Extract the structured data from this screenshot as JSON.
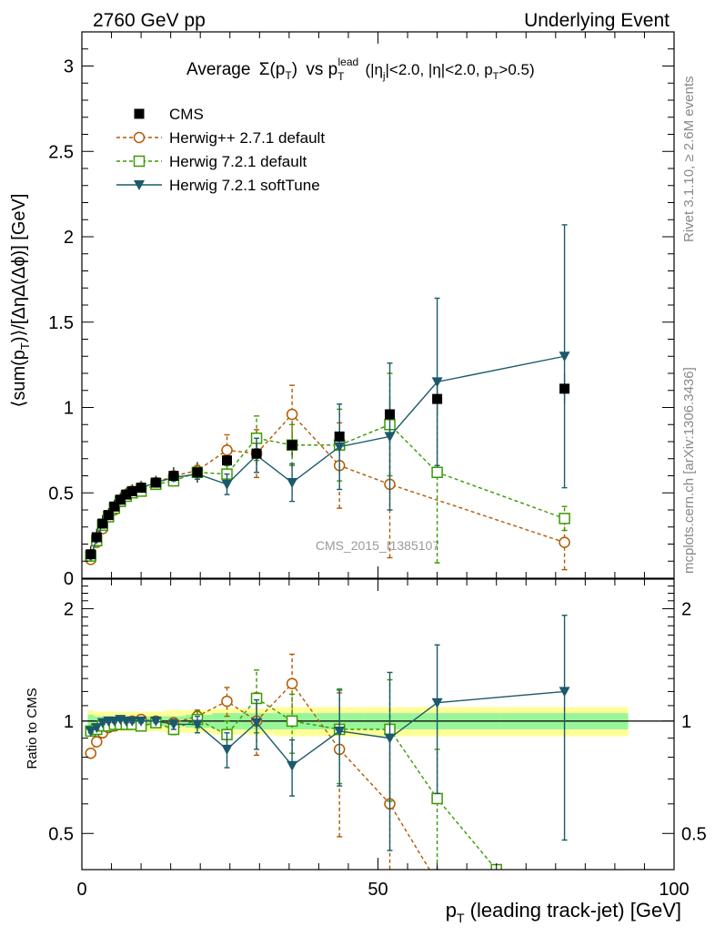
{
  "header": {
    "left": "2760 GeV pp",
    "right": "Underlying Event"
  },
  "title": {
    "main": "Average",
    "sigma": "Σ(p",
    "sigma_sub": "T",
    "sigma_close": ")",
    "vs": "vs p",
    "vs_sub": "T",
    "vs_sup": "lead",
    "cuts_a": "(|η",
    "cuts_a_sub": "j",
    "cuts_b": "|<2.0, |η|<2.0, p",
    "cuts_b_sub": "T",
    "cuts_c": ">0.5)"
  },
  "side_labels": {
    "rivet": "Rivet 3.1.10, ≥ 2.6M events",
    "mcplots": "mcplots.cern.ch [arXiv:1306.3436]"
  },
  "watermark": "CMS_2015_I1385107",
  "axes": {
    "top_ylabel_a": "⟨sum(p",
    "top_ylabel_sub": "T",
    "top_ylabel_b": ")⟩/[ΔηΔ(Δϕ)] [GeV]",
    "bottom_ylabel": "Ratio to CMS",
    "xlabel_a": "p",
    "xlabel_sub": "T",
    "xlabel_b": " (leading track-jet) [GeV]",
    "top_yticks": [
      "0",
      "0.5",
      "1",
      "1.5",
      "2",
      "2.5",
      "3"
    ],
    "bottom_yticks": [
      "0.5",
      "1",
      "2"
    ],
    "xticks": [
      "0",
      "50",
      "100"
    ]
  },
  "chart_data": [
    {
      "type": "scatter",
      "panel": "main",
      "x_range": [
        0,
        100
      ],
      "y_range": [
        0,
        3.2
      ],
      "legend_position": "top-left",
      "series": [
        {
          "name": "CMS",
          "color": "#000000",
          "marker": "filled-square",
          "x": [
            1.5,
            2.5,
            3.5,
            4.5,
            5.5,
            6.5,
            7.5,
            8.5,
            10,
            12.5,
            15.5,
            19.5,
            24.5,
            29.5,
            35.5,
            43.5,
            52,
            60,
            81.5
          ],
          "y": [
            0.14,
            0.24,
            0.32,
            0.37,
            0.42,
            0.46,
            0.49,
            0.51,
            0.53,
            0.56,
            0.6,
            0.62,
            0.69,
            0.73,
            0.78,
            0.83,
            0.96,
            1.05,
            1.11
          ],
          "uncertainty_band": [
            0.05,
            0.05,
            0.05,
            0.04,
            0.04,
            0.04,
            0.04,
            0.04,
            0.04,
            0.04,
            0.05,
            0.06,
            0.07,
            0.07,
            0.08,
            0.09,
            0.09,
            0.09,
            0.09
          ]
        },
        {
          "name": "Herwig++ 2.7.1 default",
          "color": "#b35900",
          "marker": "open-circle",
          "line": "dashed",
          "x": [
            1.5,
            2.5,
            3.5,
            4.5,
            5.5,
            6.5,
            7.5,
            8.5,
            10,
            12.5,
            15.5,
            19.5,
            24.5,
            29.5,
            35.5,
            43.5,
            52,
            81.5
          ],
          "y": [
            0.11,
            0.21,
            0.29,
            0.36,
            0.4,
            0.45,
            0.49,
            0.51,
            0.53,
            0.56,
            0.6,
            0.63,
            0.75,
            0.73,
            0.96,
            0.66,
            0.55,
            0.21
          ],
          "yerr": [
            0.01,
            0.01,
            0.01,
            0.01,
            0.01,
            0.01,
            0.01,
            0.01,
            0.01,
            0.01,
            0.02,
            0.03,
            0.09,
            0.14,
            0.17,
            0.25,
            0.43,
            0.16
          ]
        },
        {
          "name": "Herwig 7.2.1 default",
          "color": "#3a9a00",
          "marker": "open-square",
          "line": "dashed",
          "x": [
            1.5,
            2.5,
            3.5,
            4.5,
            5.5,
            6.5,
            7.5,
            8.5,
            10,
            12.5,
            15.5,
            19.5,
            24.5,
            29.5,
            35.5,
            43.5,
            52,
            60,
            81.5
          ],
          "y": [
            0.13,
            0.22,
            0.31,
            0.36,
            0.41,
            0.45,
            0.48,
            0.5,
            0.51,
            0.55,
            0.57,
            0.62,
            0.61,
            0.82,
            0.78,
            0.78,
            0.9,
            0.62,
            0.35
          ],
          "yerr": [
            0.01,
            0.01,
            0.01,
            0.01,
            0.01,
            0.01,
            0.01,
            0.01,
            0.01,
            0.01,
            0.02,
            0.03,
            0.05,
            0.13,
            0.12,
            0.21,
            0.3,
            0.53,
            0.07
          ]
        },
        {
          "name": "Herwig 7.2.1 softTune",
          "color": "#1a5a6a",
          "marker": "filled-triangle-down",
          "line": "solid",
          "x": [
            1.5,
            2.5,
            3.5,
            4.5,
            5.5,
            6.5,
            7.5,
            8.5,
            10,
            12.5,
            15.5,
            19.5,
            24.5,
            29.5,
            35.5,
            43.5,
            52,
            60,
            81.5
          ],
          "y": [
            0.13,
            0.23,
            0.32,
            0.37,
            0.42,
            0.46,
            0.49,
            0.51,
            0.53,
            0.56,
            0.59,
            0.61,
            0.55,
            0.72,
            0.56,
            0.77,
            0.83,
            1.15,
            1.3
          ],
          "yerr": [
            0.01,
            0.01,
            0.01,
            0.01,
            0.01,
            0.01,
            0.01,
            0.01,
            0.01,
            0.01,
            0.02,
            0.03,
            0.06,
            0.1,
            0.11,
            0.25,
            0.43,
            0.49,
            0.77
          ]
        }
      ]
    },
    {
      "type": "scatter",
      "panel": "ratio",
      "x_range": [
        0,
        100
      ],
      "y_range": [
        0.4,
        2.4
      ],
      "y_scale": "log",
      "reference_line": 1,
      "series": [
        {
          "name": "CMS",
          "color": "#000000",
          "x": [
            1.5,
            2.5,
            3.5,
            4.5,
            5.5,
            6.5,
            7.5,
            8.5,
            10,
            12.5,
            15.5,
            19.5,
            24.5,
            29.5,
            35.5,
            43.5,
            52,
            60,
            81.5
          ],
          "y": [
            1,
            1,
            1,
            1,
            1,
            1,
            1,
            1,
            1,
            1,
            1,
            1,
            1,
            1,
            1,
            1,
            1,
            1,
            1
          ],
          "stat_band": [
            0.04,
            0.03,
            0.03,
            0.03,
            0.02,
            0.02,
            0.02,
            0.02,
            0.03,
            0.03,
            0.03,
            0.04,
            0.05,
            0.05,
            0.05,
            0.05,
            0.05,
            0.05,
            0.05
          ],
          "total_band": [
            0.07,
            0.06,
            0.06,
            0.06,
            0.06,
            0.06,
            0.06,
            0.06,
            0.06,
            0.06,
            0.07,
            0.07,
            0.08,
            0.08,
            0.09,
            0.09,
            0.09,
            0.09,
            0.09
          ]
        },
        {
          "name": "Herwig++ 2.7.1 default",
          "color": "#b35900",
          "x": [
            1.5,
            2.5,
            3.5,
            4.5,
            5.5,
            6.5,
            7.5,
            8.5,
            10,
            12.5,
            15.5,
            19.5,
            24.5,
            29.5,
            35.5,
            43.5,
            52,
            60
          ],
          "y": [
            0.82,
            0.88,
            0.93,
            0.96,
            0.97,
            0.98,
            0.99,
            1.0,
            1.01,
            1.0,
            0.99,
            1.03,
            1.13,
            1.0,
            1.26,
            0.84,
            0.6,
            0.37
          ],
          "yerr": [
            0.01,
            0.01,
            0.01,
            0.01,
            0.01,
            0.01,
            0.01,
            0.01,
            0.01,
            0.01,
            0.02,
            0.04,
            0.1,
            0.19,
            0.25,
            0.35,
            0.35,
            0.0
          ]
        },
        {
          "name": "Herwig 7.2.1 default",
          "color": "#3a9a00",
          "x": [
            1.5,
            2.5,
            3.5,
            4.5,
            5.5,
            6.5,
            7.5,
            8.5,
            10,
            12.5,
            15.5,
            19.5,
            24.5,
            29.5,
            35.5,
            43.5,
            52,
            60,
            70
          ],
          "y": [
            0.94,
            0.95,
            0.97,
            0.97,
            0.98,
            0.98,
            0.98,
            0.98,
            0.97,
            0.99,
            0.95,
            1.01,
            0.92,
            1.15,
            1.0,
            0.95,
            0.95,
            0.62,
            0.4
          ],
          "yerr": [
            0.01,
            0.01,
            0.01,
            0.01,
            0.01,
            0.01,
            0.01,
            0.01,
            0.01,
            0.01,
            0.03,
            0.05,
            0.08,
            0.22,
            0.18,
            0.27,
            0.34,
            0.22,
            0.0
          ]
        },
        {
          "name": "Herwig 7.2.1 softTune",
          "color": "#1a5a6a",
          "x": [
            1.5,
            2.5,
            3.5,
            4.5,
            5.5,
            6.5,
            7.5,
            8.5,
            10,
            12.5,
            15.5,
            19.5,
            24.5,
            29.5,
            35.5,
            43.5,
            52,
            60,
            81.5
          ],
          "y": [
            0.94,
            0.96,
            0.99,
            1.0,
            1.0,
            1.01,
            1.0,
            1.0,
            1.0,
            1.0,
            0.98,
            0.98,
            0.84,
            0.99,
            0.76,
            0.94,
            0.9,
            1.12,
            1.2
          ],
          "yerr": [
            0.01,
            0.01,
            0.01,
            0.01,
            0.01,
            0.01,
            0.01,
            0.01,
            0.01,
            0.01,
            0.03,
            0.05,
            0.09,
            0.15,
            0.13,
            0.27,
            0.45,
            0.48,
            0.72
          ]
        }
      ]
    }
  ]
}
